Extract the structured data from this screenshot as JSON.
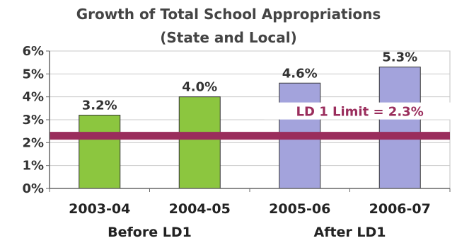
{
  "chart_data": {
    "type": "bar",
    "title": "Growth of Total School Appropriations",
    "subtitle": "(State and Local)",
    "categories": [
      "2003-04",
      "2004-05",
      "2005-06",
      "2006-07"
    ],
    "values": [
      3.2,
      4.0,
      4.6,
      5.3
    ],
    "data_labels": [
      "3.2%",
      "4.0%",
      "4.6%",
      "5.3%"
    ],
    "bar_colors": [
      "#8cc63f",
      "#8cc63f",
      "#a3a3dc",
      "#a3a3dc"
    ],
    "ylim": [
      0,
      6
    ],
    "y_ticks": [
      0,
      1,
      2,
      3,
      4,
      5,
      6
    ],
    "y_tick_labels": [
      "0%",
      "1%",
      "2%",
      "3%",
      "4%",
      "5%",
      "6%"
    ],
    "group_labels": [
      "Before LD1",
      "After LD1"
    ],
    "reference_line": {
      "value": 2.3,
      "label": "LD 1 Limit = 2.3%",
      "color": "#9a2d5c"
    },
    "grid": true,
    "legend": "none",
    "xlabel": "",
    "ylabel": ""
  }
}
